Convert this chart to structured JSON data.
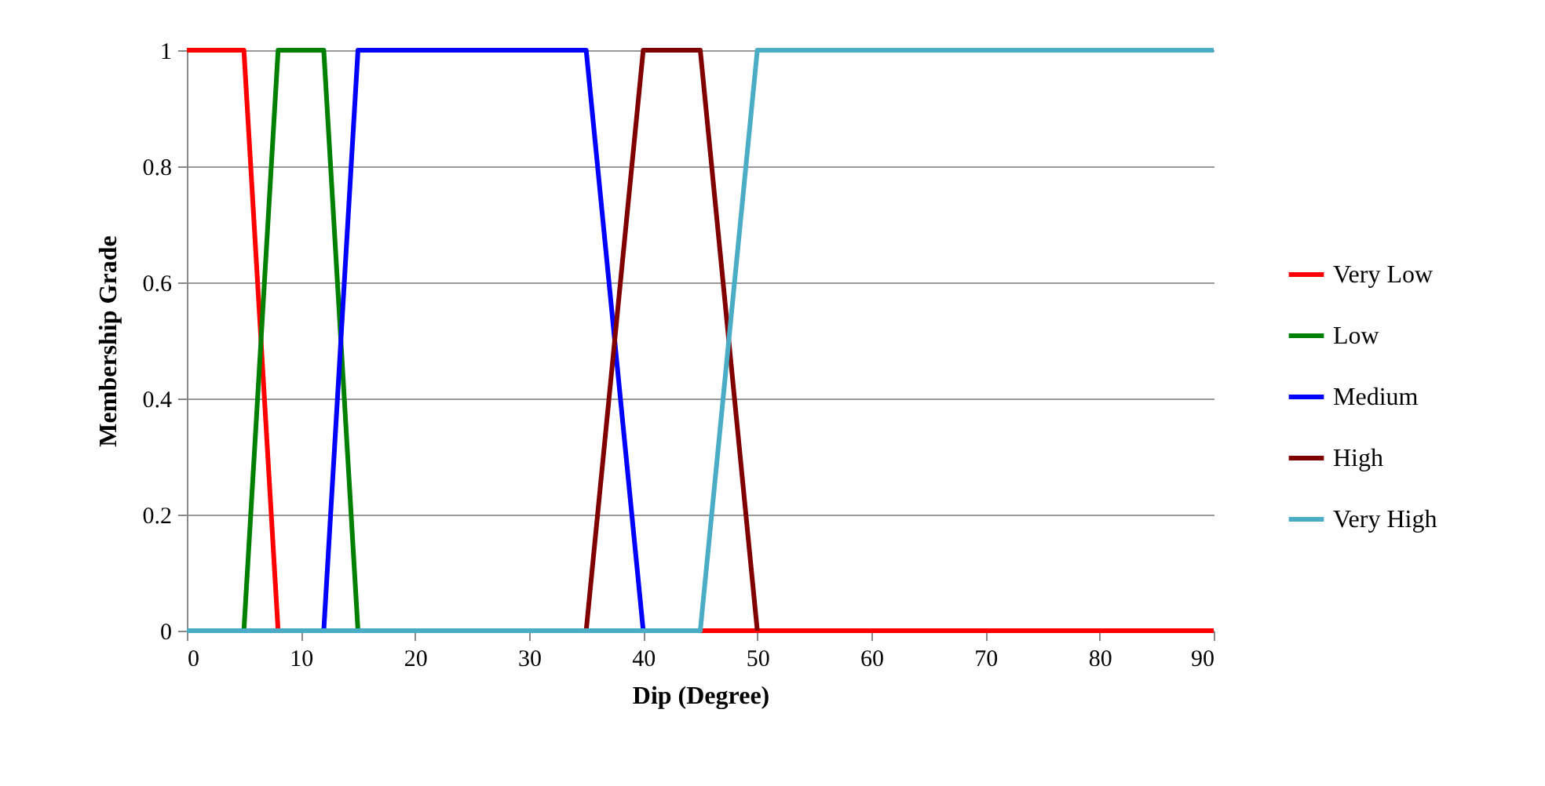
{
  "chart_data": {
    "type": "line",
    "xlabel": "Dip (Degree)",
    "ylabel": "Membership Grade",
    "series": [
      {
        "name": "Very Low",
        "color": "#ff0000",
        "x": [
          0,
          5,
          8,
          90
        ],
        "values": [
          1,
          1,
          0,
          0
        ]
      },
      {
        "name": "Low",
        "color": "#008000",
        "x": [
          0,
          5,
          8,
          12,
          15
        ],
        "values": [
          0,
          0,
          1,
          1,
          0
        ]
      },
      {
        "name": "Medium",
        "color": "#0000ff",
        "x": [
          0,
          12,
          15,
          35,
          40
        ],
        "values": [
          0,
          0,
          1,
          1,
          0
        ]
      },
      {
        "name": "High",
        "color": "#800000",
        "x": [
          0,
          35,
          40,
          45,
          50
        ],
        "values": [
          0,
          0,
          1,
          1,
          0
        ]
      },
      {
        "name": "Very High",
        "color": "#4bacc6",
        "x": [
          0,
          45,
          50,
          90
        ],
        "values": [
          0,
          0,
          1,
          1
        ]
      }
    ],
    "xlim": [
      0,
      90
    ],
    "xticks": [
      0,
      10,
      20,
      30,
      40,
      50,
      60,
      70,
      80,
      90
    ],
    "ylim": [
      0,
      1
    ],
    "yticks": [
      0,
      0.2,
      0.4,
      0.6,
      0.8,
      1
    ],
    "grid": "y",
    "legend": "right",
    "marker": "none",
    "line_style": "solid"
  }
}
